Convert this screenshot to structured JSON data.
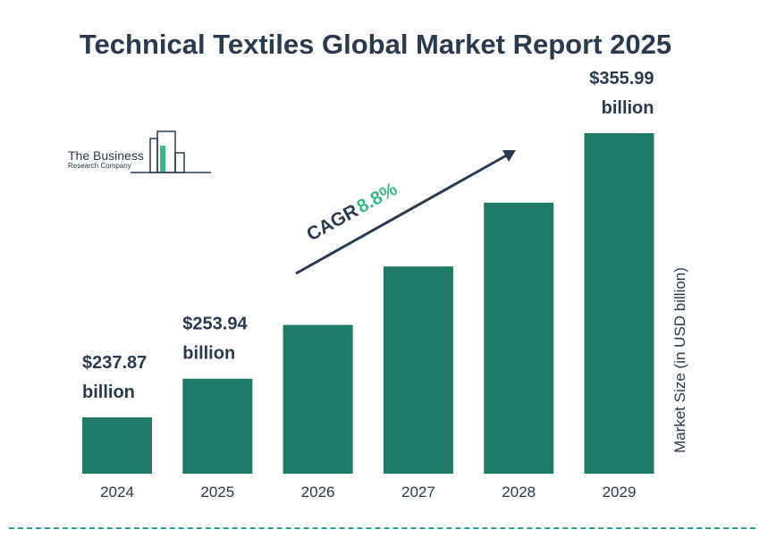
{
  "chart_data": {
    "type": "bar",
    "title": "Technical Textiles Global Market Report 2025",
    "ylabel": "Market Size (in USD billion)",
    "categories": [
      "2024",
      "2025",
      "2026",
      "2027",
      "2028",
      "2029"
    ],
    "values": [
      237.87,
      253.94,
      276.3,
      300.6,
      327.1,
      355.99
    ],
    "data_labels": [
      {
        "index": 0,
        "value": "$237.87",
        "unit": "billion"
      },
      {
        "index": 1,
        "value": "$253.94",
        "unit": "billion"
      },
      {
        "index": 5,
        "value": "$355.99",
        "unit": "billion"
      }
    ],
    "cagr": {
      "label": "CAGR",
      "value": "8.8%"
    },
    "bar_color": "#1f7a67",
    "grid": false
  },
  "logo": {
    "line1": "The Business",
    "line2": "Research Company"
  },
  "colors": {
    "text": "#2b3a4e",
    "accent": "#3bb887",
    "bar": "#1f7a67",
    "dash": "#2a9d8f"
  }
}
